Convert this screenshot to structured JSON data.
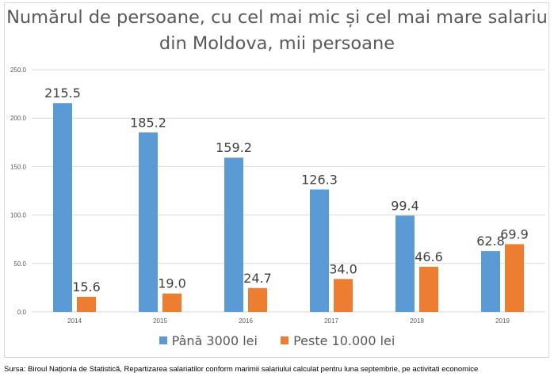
{
  "chart_data": {
    "type": "bar",
    "title": "Numărul de persoane, cu cel mai mic și cel mai mare salariu din Moldova, mii persoane",
    "categories": [
      "2014",
      "2015",
      "2016",
      "2017",
      "2018",
      "2019"
    ],
    "series": [
      {
        "name": "Până 3000 lei",
        "color": "#5b9bd5",
        "values": [
          215.5,
          185.2,
          159.2,
          126.3,
          99.4,
          62.8
        ]
      },
      {
        "name": "Peste 10.000 lei",
        "color": "#ed7d31",
        "values": [
          15.6,
          19.0,
          24.7,
          34.0,
          46.6,
          69.9
        ]
      }
    ],
    "ylim": [
      0,
      250
    ],
    "yticks": [
      "0.0",
      "50.0",
      "100.0",
      "150.0",
      "200.0",
      "250.0"
    ],
    "grid": true,
    "legend": "bottom",
    "xlabel": "",
    "ylabel": ""
  },
  "source": "Sursa: Biroul Naționla de Statistică, Repartizarea salariatilor conform marimii salariului calculat pentru luna septembrie, pe activitati economice"
}
